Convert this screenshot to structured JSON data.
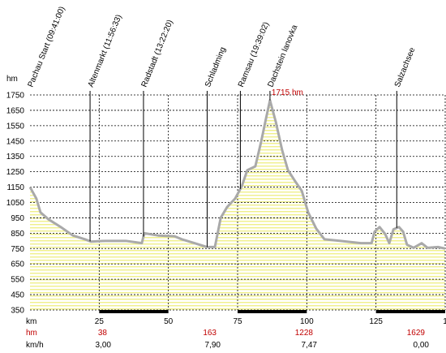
{
  "chart_data": {
    "type": "line",
    "y_unit": "hm",
    "x_unit": "km",
    "xlim": [
      0,
      150
    ],
    "ylim": [
      350,
      1750
    ],
    "xticks": [
      25,
      50,
      75,
      100,
      125,
      {
        "value": 150,
        "label": "1"
      }
    ],
    "yticks": [
      350,
      450,
      550,
      650,
      750,
      850,
      950,
      1050,
      1150,
      1250,
      1350,
      1450,
      1550,
      1650,
      1750
    ],
    "grid": true,
    "series": [
      {
        "color": "#a9a9a9",
        "x": [
          0,
          2.3,
          3.8,
          6.7,
          11.1,
          15.5,
          19.9,
          22,
          27.2,
          34.6,
          40.4,
          41.3,
          46.3,
          52.2,
          54.9,
          59.5,
          63.9,
          66.8,
          68.9,
          71.2,
          74.1,
          76.5,
          78.5,
          81.4,
          83.5,
          85.3,
          86.7,
          88.8,
          91.1,
          93.2,
          96.1,
          98.2,
          100.5,
          103.4,
          106.4,
          112.2,
          119.5,
          123.4,
          124.5,
          126.3,
          128.3,
          129.8,
          131.3,
          133.3,
          134.8,
          136.2,
          138.6,
          141.5,
          143.6,
          147.4,
          150
        ],
        "values": [
          1150,
          1075,
          985,
          940,
          890,
          835,
          810,
          795,
          800,
          800,
          785,
          850,
          835,
          830,
          810,
          785,
          760,
          760,
          950,
          1020,
          1075,
          1155,
          1260,
          1285,
          1445,
          1600,
          1715,
          1575,
          1390,
          1260,
          1180,
          1125,
          985,
          880,
          810,
          800,
          785,
          785,
          860,
          890,
          845,
          785,
          875,
          890,
          860,
          775,
          755,
          785,
          755,
          760,
          750
        ]
      }
    ],
    "peak_label": "1715 hm",
    "waypoints": [
      {
        "label": "Pachau Start (09:41:00)",
        "km": 0
      },
      {
        "label": "Altenmarkt (11:56:33)",
        "km": 21.7
      },
      {
        "label": "Radstadt (13:22:20)",
        "km": 41
      },
      {
        "label": "Schladming",
        "km": 64
      },
      {
        "label": "Ramsau (19:39:02)",
        "km": 76
      },
      {
        "label": "Dachstein lanovka",
        "km": 86.7
      },
      {
        "label": "Salzachsee",
        "km": 132.5
      }
    ],
    "footer": {
      "climb": {
        "label": "hm",
        "values": [
          38,
          163,
          1228,
          1629
        ]
      },
      "speed": {
        "label": "km/h",
        "values": [
          "3,00",
          "7,90",
          "7,47",
          "0,00"
        ]
      }
    }
  }
}
